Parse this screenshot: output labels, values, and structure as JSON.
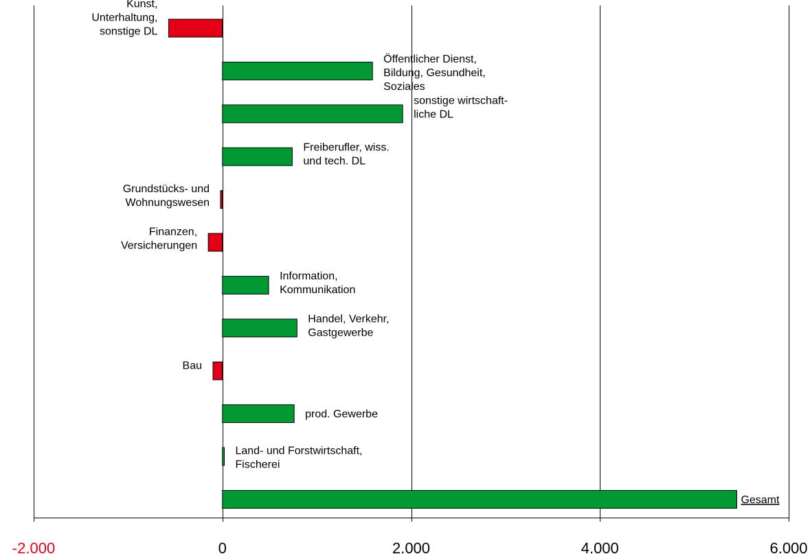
{
  "chart_data": {
    "type": "bar",
    "orientation": "horizontal",
    "title": "",
    "xlabel": "",
    "ylabel": "",
    "xlim": [
      -2000,
      6000
    ],
    "grid": {
      "vertical": true,
      "horizontal": false
    },
    "x_ticks": [
      {
        "value": -2000,
        "label": "-2.000",
        "color": "#e8001c"
      },
      {
        "value": 0,
        "label": "0",
        "color": "#000000"
      },
      {
        "value": 2000,
        "label": "2.000",
        "color": "#000000"
      },
      {
        "value": 4000,
        "label": "4.000",
        "color": "#000000"
      },
      {
        "value": 6000,
        "label": "6.000",
        "color": "#000000"
      }
    ],
    "colors": {
      "positive": "#009933",
      "negative": "#e30016",
      "outline": "#000000"
    },
    "categories": [
      {
        "label": "Kunst, Unterhaltung, sonstige DL",
        "lines": [
          "Kunst,",
          "Unterhaltung,",
          "sonstige DL"
        ],
        "value": -570
      },
      {
        "label": "Öffentlicher Dienst, Bildung, Gesundheit, Soziales",
        "lines": [
          "Öffentlicher Dienst,",
          "Bildung, Gesundheit,",
          "Soziales"
        ],
        "value": 1590
      },
      {
        "label": "sonstige wirtschaftliche DL",
        "lines": [
          "sonstige wirtschaft-",
          "liche DL"
        ],
        "value": 1910
      },
      {
        "label": "Freiberufler, wiss. und tech. DL",
        "lines": [
          "Freiberufler, wiss.",
          "und tech. DL"
        ],
        "value": 740
      },
      {
        "label": "Grundstücks- und Wohnungswesen",
        "lines": [
          "Grundstücks- und",
          "Wohnungswesen"
        ],
        "value": -20
      },
      {
        "label": "Finanzen, Versicherungen",
        "lines": [
          "Finanzen,",
          "Versicherungen"
        ],
        "value": -150
      },
      {
        "label": "Information, Kommunikation",
        "lines": [
          "Information,",
          "Kommunikation"
        ],
        "value": 490
      },
      {
        "label": "Handel, Verkehr, Gastgewerbe",
        "lines": [
          "Handel, Verkehr,",
          "Gastgewerbe"
        ],
        "value": 790
      },
      {
        "label": "Bau",
        "lines": [
          "Bau"
        ],
        "value": -100
      },
      {
        "label": "prod. Gewerbe",
        "lines": [
          "prod. Gewerbe"
        ],
        "value": 760
      },
      {
        "label": "Land- und Forstwirtschaft, Fischerei",
        "lines": [
          "Land- und Forstwirtschaft,",
          "Fischerei"
        ],
        "value": 20
      },
      {
        "label": "Gesamt",
        "lines": [
          "Gesamt"
        ],
        "value": 5450,
        "underline": true
      }
    ]
  }
}
